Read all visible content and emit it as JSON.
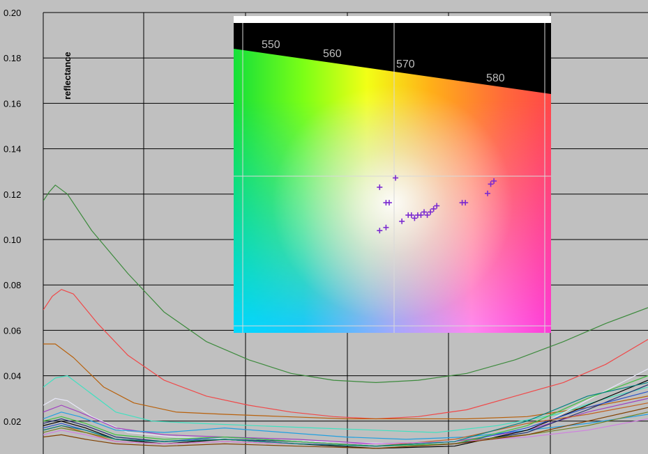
{
  "chart_data": {
    "type": "line",
    "title": "",
    "xlabel": "",
    "ylabel": "reflectance",
    "ylim": [
      0.004,
      0.2
    ],
    "yticks": [
      0.02,
      0.04,
      0.06,
      0.08,
      0.1,
      0.12,
      0.14,
      0.16,
      0.18,
      0.2
    ],
    "ytick_labels": [
      "0.02",
      "0.04",
      "0.06",
      "0.08",
      "0.10",
      "0.12",
      "0.14",
      "0.16",
      "0.18",
      "0.20"
    ],
    "x_range": [
      0,
      100
    ],
    "grid": true,
    "series": [
      {
        "color": "#3c8a3c",
        "values": [
          [
            0,
            0.117
          ],
          [
            1,
            0.121
          ],
          [
            2,
            0.124
          ],
          [
            4,
            0.12
          ],
          [
            8,
            0.104
          ],
          [
            14,
            0.085
          ],
          [
            20,
            0.068
          ],
          [
            27,
            0.055
          ],
          [
            34,
            0.047
          ],
          [
            41,
            0.041
          ],
          [
            48,
            0.038
          ],
          [
            55,
            0.037
          ],
          [
            62,
            0.038
          ],
          [
            70,
            0.041
          ],
          [
            78,
            0.047
          ],
          [
            86,
            0.055
          ],
          [
            93,
            0.063
          ],
          [
            100,
            0.07
          ]
        ]
      },
      {
        "color": "#f04848",
        "values": [
          [
            0,
            0.069
          ],
          [
            1.5,
            0.075
          ],
          [
            3,
            0.078
          ],
          [
            5,
            0.076
          ],
          [
            9,
            0.063
          ],
          [
            14,
            0.049
          ],
          [
            20,
            0.038
          ],
          [
            27,
            0.031
          ],
          [
            34,
            0.027
          ],
          [
            41,
            0.024
          ],
          [
            48,
            0.022
          ],
          [
            55,
            0.021
          ],
          [
            62,
            0.022
          ],
          [
            70,
            0.025
          ],
          [
            78,
            0.031
          ],
          [
            86,
            0.037
          ],
          [
            93,
            0.045
          ],
          [
            100,
            0.056
          ]
        ]
      },
      {
        "color": "#b8600a",
        "values": [
          [
            0,
            0.054
          ],
          [
            2,
            0.054
          ],
          [
            5,
            0.048
          ],
          [
            10,
            0.035
          ],
          [
            15,
            0.028
          ],
          [
            22,
            0.024
          ],
          [
            30,
            0.023
          ],
          [
            40,
            0.022
          ],
          [
            50,
            0.021
          ],
          [
            60,
            0.021
          ],
          [
            70,
            0.021
          ],
          [
            80,
            0.022
          ],
          [
            90,
            0.026
          ],
          [
            100,
            0.031
          ]
        ]
      },
      {
        "color": "#40e0c0",
        "values": [
          [
            0,
            0.035
          ],
          [
            2,
            0.039
          ],
          [
            4,
            0.04
          ],
          [
            7,
            0.034
          ],
          [
            12,
            0.024
          ],
          [
            18,
            0.02
          ],
          [
            26,
            0.019
          ],
          [
            35,
            0.018
          ],
          [
            45,
            0.017
          ],
          [
            55,
            0.016
          ],
          [
            65,
            0.015
          ],
          [
            75,
            0.018
          ],
          [
            85,
            0.023
          ],
          [
            93,
            0.03
          ],
          [
            100,
            0.035
          ]
        ]
      },
      {
        "color": "#e8e8f8",
        "values": [
          [
            0,
            0.027
          ],
          [
            2,
            0.03
          ],
          [
            4,
            0.029
          ],
          [
            8,
            0.022
          ],
          [
            14,
            0.015
          ],
          [
            22,
            0.013
          ],
          [
            32,
            0.012
          ],
          [
            45,
            0.011
          ],
          [
            60,
            0.01
          ],
          [
            72,
            0.012
          ],
          [
            82,
            0.018
          ],
          [
            92,
            0.032
          ],
          [
            100,
            0.043
          ]
        ]
      },
      {
        "color": "#a040c0",
        "values": [
          [
            0,
            0.024
          ],
          [
            3,
            0.027
          ],
          [
            6,
            0.024
          ],
          [
            12,
            0.017
          ],
          [
            20,
            0.014
          ],
          [
            30,
            0.013
          ],
          [
            42,
            0.012
          ],
          [
            55,
            0.01
          ],
          [
            68,
            0.011
          ],
          [
            80,
            0.016
          ],
          [
            90,
            0.024
          ],
          [
            100,
            0.03
          ]
        ]
      },
      {
        "color": "#20a0e0",
        "values": [
          [
            0,
            0.021
          ],
          [
            3,
            0.024
          ],
          [
            6,
            0.022
          ],
          [
            12,
            0.016
          ],
          [
            20,
            0.015
          ],
          [
            30,
            0.017
          ],
          [
            40,
            0.015
          ],
          [
            50,
            0.013
          ],
          [
            60,
            0.012
          ],
          [
            70,
            0.013
          ],
          [
            80,
            0.016
          ],
          [
            90,
            0.019
          ],
          [
            100,
            0.023
          ]
        ]
      },
      {
        "color": "#203070",
        "values": [
          [
            0,
            0.019
          ],
          [
            3,
            0.021
          ],
          [
            7,
            0.018
          ],
          [
            12,
            0.013
          ],
          [
            20,
            0.011
          ],
          [
            30,
            0.012
          ],
          [
            42,
            0.011
          ],
          [
            55,
            0.009
          ],
          [
            68,
            0.01
          ],
          [
            80,
            0.015
          ],
          [
            90,
            0.025
          ],
          [
            100,
            0.036
          ]
        ]
      },
      {
        "color": "#000000",
        "values": [
          [
            0,
            0.018
          ],
          [
            3,
            0.02
          ],
          [
            7,
            0.017
          ],
          [
            12,
            0.012
          ],
          [
            20,
            0.01
          ],
          [
            30,
            0.012
          ],
          [
            42,
            0.01
          ],
          [
            55,
            0.008
          ],
          [
            68,
            0.009
          ],
          [
            80,
            0.016
          ],
          [
            90,
            0.027
          ],
          [
            100,
            0.038
          ]
        ]
      },
      {
        "color": "#2850c8",
        "values": [
          [
            0,
            0.017
          ],
          [
            3,
            0.019
          ],
          [
            7,
            0.016
          ],
          [
            12,
            0.012
          ],
          [
            20,
            0.011
          ],
          [
            30,
            0.013
          ],
          [
            42,
            0.011
          ],
          [
            55,
            0.009
          ],
          [
            68,
            0.01
          ],
          [
            80,
            0.017
          ],
          [
            90,
            0.026
          ],
          [
            100,
            0.033
          ]
        ]
      },
      {
        "color": "#c06020",
        "values": [
          [
            0,
            0.016
          ],
          [
            3,
            0.018
          ],
          [
            7,
            0.015
          ],
          [
            12,
            0.011
          ],
          [
            20,
            0.01
          ],
          [
            30,
            0.011
          ],
          [
            42,
            0.01
          ],
          [
            55,
            0.009
          ],
          [
            68,
            0.012
          ],
          [
            80,
            0.019
          ],
          [
            90,
            0.023
          ],
          [
            100,
            0.028
          ]
        ]
      },
      {
        "color": "#708020",
        "values": [
          [
            0,
            0.015
          ],
          [
            3,
            0.017
          ],
          [
            7,
            0.015
          ],
          [
            12,
            0.012
          ],
          [
            20,
            0.011
          ],
          [
            30,
            0.012
          ],
          [
            42,
            0.01
          ],
          [
            55,
            0.009
          ],
          [
            68,
            0.011
          ],
          [
            80,
            0.014
          ],
          [
            90,
            0.018
          ],
          [
            100,
            0.024
          ]
        ]
      },
      {
        "color": "#d080e0",
        "values": [
          [
            0,
            0.014
          ],
          [
            3,
            0.016
          ],
          [
            7,
            0.014
          ],
          [
            12,
            0.011
          ],
          [
            20,
            0.01
          ],
          [
            30,
            0.011
          ],
          [
            42,
            0.01
          ],
          [
            55,
            0.01
          ],
          [
            68,
            0.011
          ],
          [
            80,
            0.013
          ],
          [
            90,
            0.016
          ],
          [
            100,
            0.021
          ]
        ]
      },
      {
        "color": "#40c040",
        "values": [
          [
            0,
            0.02
          ],
          [
            3,
            0.022
          ],
          [
            7,
            0.019
          ],
          [
            12,
            0.014
          ],
          [
            20,
            0.012
          ],
          [
            30,
            0.013
          ],
          [
            42,
            0.011
          ],
          [
            55,
            0.009
          ],
          [
            68,
            0.01
          ],
          [
            80,
            0.018
          ],
          [
            90,
            0.03
          ],
          [
            100,
            0.04
          ]
        ]
      },
      {
        "color": "#804000",
        "values": [
          [
            0,
            0.013
          ],
          [
            3,
            0.014
          ],
          [
            7,
            0.012
          ],
          [
            12,
            0.01
          ],
          [
            20,
            0.009
          ],
          [
            30,
            0.01
          ],
          [
            42,
            0.009
          ],
          [
            55,
            0.008
          ],
          [
            68,
            0.01
          ],
          [
            80,
            0.014
          ],
          [
            90,
            0.02
          ],
          [
            100,
            0.026
          ]
        ]
      },
      {
        "color": "#008080",
        "values": [
          [
            0,
            0.016
          ],
          [
            3,
            0.018
          ],
          [
            7,
            0.016
          ],
          [
            12,
            0.012
          ],
          [
            20,
            0.011
          ],
          [
            30,
            0.012
          ],
          [
            42,
            0.01
          ],
          [
            55,
            0.009
          ],
          [
            68,
            0.011
          ],
          [
            80,
            0.02
          ],
          [
            90,
            0.031
          ],
          [
            100,
            0.037
          ]
        ]
      }
    ]
  },
  "inset": {
    "wavelength_labels": [
      "550",
      "560",
      "570",
      "580"
    ],
    "marker": "+",
    "marker_color": "#7a2ad0",
    "points": [
      [
        0.46,
        0.53
      ],
      [
        0.48,
        0.58
      ],
      [
        0.49,
        0.58
      ],
      [
        0.51,
        0.5
      ],
      [
        0.46,
        0.67
      ],
      [
        0.48,
        0.66
      ],
      [
        0.53,
        0.64
      ],
      [
        0.55,
        0.62
      ],
      [
        0.56,
        0.62
      ],
      [
        0.57,
        0.63
      ],
      [
        0.58,
        0.62
      ],
      [
        0.59,
        0.62
      ],
      [
        0.6,
        0.61
      ],
      [
        0.61,
        0.62
      ],
      [
        0.62,
        0.61
      ],
      [
        0.63,
        0.6
      ],
      [
        0.64,
        0.59
      ],
      [
        0.72,
        0.58
      ],
      [
        0.73,
        0.58
      ],
      [
        0.8,
        0.55
      ],
      [
        0.81,
        0.52
      ],
      [
        0.82,
        0.51
      ]
    ]
  }
}
